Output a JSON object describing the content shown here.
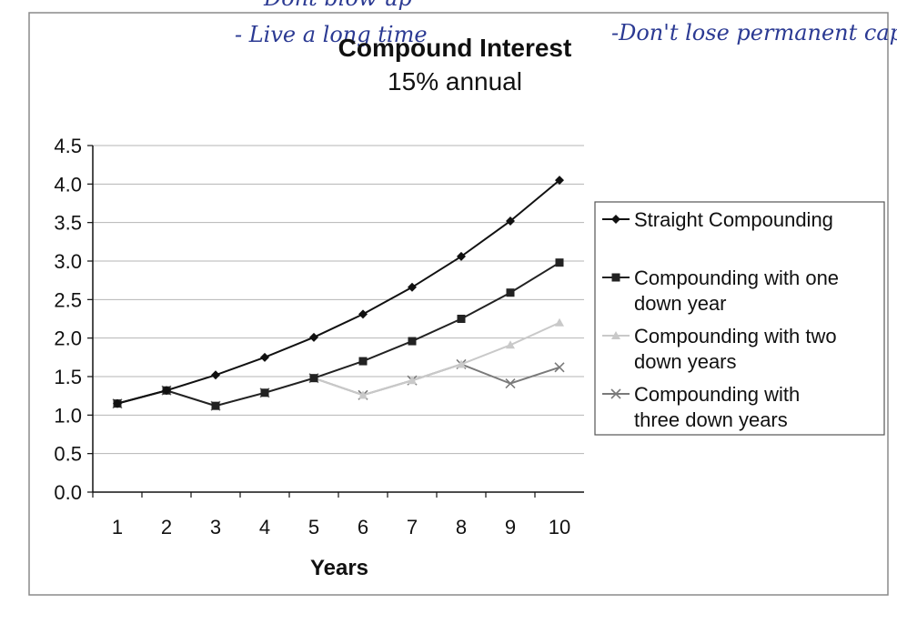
{
  "annotations": {
    "handwritten": [
      "Dont blow up",
      "- Live a long time",
      "-Don't lose permanent capital"
    ]
  },
  "chart_data": {
    "type": "line",
    "title": "Compound Interest",
    "subtitle": "15% annual",
    "xlabel": "Years",
    "ylabel": "",
    "x": [
      1,
      2,
      3,
      4,
      5,
      6,
      7,
      8,
      9,
      10
    ],
    "xticks": [
      "1",
      "2",
      "3",
      "4",
      "5",
      "6",
      "7",
      "8",
      "9",
      "10"
    ],
    "ylim": [
      0,
      4.5
    ],
    "yticks": [
      "0.0",
      "0.5",
      "1.0",
      "1.5",
      "2.0",
      "2.5",
      "3.0",
      "3.5",
      "4.0",
      "4.5"
    ],
    "grid": true,
    "legend_position": "right",
    "series": [
      {
        "name": "Straight Compounding",
        "color": "#111111",
        "marker": "diamond",
        "values": [
          1.15,
          1.32,
          1.52,
          1.75,
          2.01,
          2.31,
          2.66,
          3.06,
          3.52,
          4.05
        ]
      },
      {
        "name": "Compounding with one down year",
        "color": "#222222",
        "marker": "square",
        "values": [
          1.15,
          1.32,
          1.12,
          1.29,
          1.48,
          1.7,
          1.96,
          2.25,
          2.59,
          2.98
        ]
      },
      {
        "name": "Compounding with two down years",
        "color": "#c9c9c9",
        "marker": "triangle",
        "values": [
          1.15,
          1.32,
          1.12,
          1.29,
          1.48,
          1.26,
          1.45,
          1.66,
          1.91,
          2.2
        ]
      },
      {
        "name": "Compounding with three down years",
        "color": "#7a7a7a",
        "marker": "x",
        "values": [
          1.15,
          1.32,
          1.12,
          1.29,
          1.48,
          1.26,
          1.45,
          1.66,
          1.41,
          1.62
        ]
      }
    ]
  }
}
